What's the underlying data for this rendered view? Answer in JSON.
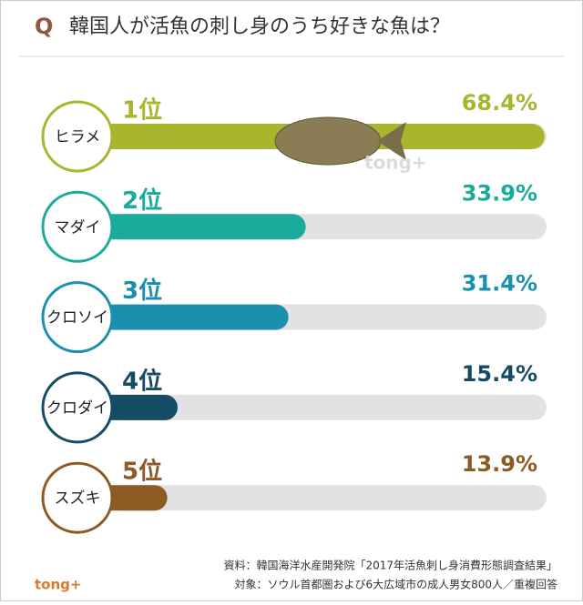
{
  "chart_data": {
    "type": "bar",
    "question_mark": "Q",
    "title": "韓国人が活魚の刺し身のうち好きな魚は？",
    "categories": [
      "ヒラメ",
      "マダイ",
      "クロソイ",
      "クロダイ",
      "スズキ"
    ],
    "ranks": [
      "1位",
      "2位",
      "3位",
      "4位",
      "5位"
    ],
    "values": [
      68.4,
      33.9,
      31.4,
      15.4,
      13.9
    ],
    "value_labels": [
      "68.4%",
      "33.9%",
      "31.4%",
      "15.4%",
      "13.9%"
    ],
    "colors": [
      "#a9b52d",
      "#1aab9c",
      "#1a90ae",
      "#154b64",
      "#8c5a22"
    ],
    "xlim": [
      0,
      70
    ],
    "source": "資料：韓国海洋水産開発院「2017年活魚刺し身消費形態調査結果」",
    "subject": "対象：ソウル首都圏および6大広域市の成人男女800人／重複回答",
    "logo": "tong+"
  }
}
